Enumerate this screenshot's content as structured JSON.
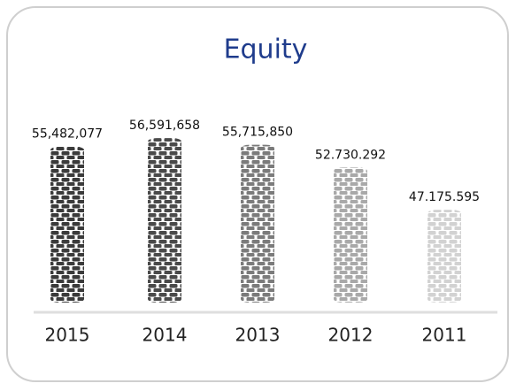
{
  "chart_data": {
    "type": "bar",
    "title": "Equity",
    "categories": [
      "2015",
      "2014",
      "2013",
      "2012",
      "2011"
    ],
    "values": [
      55482077,
      56591658,
      55715850,
      52730292,
      47175595
    ],
    "value_labels": [
      "55,482,077",
      "56,591,658",
      "55,715,850",
      "52.730.292",
      "47.175.595"
    ],
    "colors": [
      "#3b3b3b",
      "#4a4a4a",
      "#7b7b7b",
      "#a9a9a9",
      "#d2d2d2"
    ],
    "ylim": [
      35000000,
      58000000
    ]
  }
}
